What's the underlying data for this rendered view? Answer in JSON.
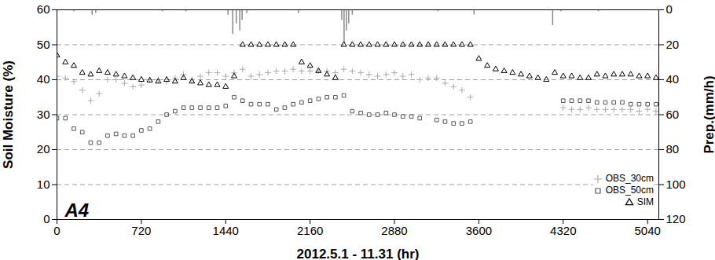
{
  "chart_data": {
    "type": "scatter",
    "title": "A4",
    "x_label": "2012.5.1 - 11.31 (hr)",
    "y_label": "Soil Moisture (%)",
    "y2_label": "Prep.(mm/h)",
    "xlim": [
      0,
      5136
    ],
    "xticks": [
      0,
      720,
      1440,
      2160,
      2880,
      3600,
      4320,
      5040
    ],
    "ylim": [
      0,
      60
    ],
    "yticks": [
      0,
      10,
      20,
      30,
      40,
      50,
      60
    ],
    "y2lim": [
      120,
      0
    ],
    "y2ticks": [
      0,
      20,
      40,
      60,
      80,
      100,
      120
    ],
    "grid": true,
    "legend": "bottom-right",
    "x": [
      0,
      72,
      144,
      216,
      288,
      360,
      432,
      504,
      576,
      648,
      720,
      792,
      864,
      936,
      1008,
      1080,
      1152,
      1224,
      1296,
      1368,
      1440,
      1512,
      1584,
      1656,
      1728,
      1800,
      1872,
      1944,
      2016,
      2088,
      2160,
      2232,
      2304,
      2376,
      2448,
      2520,
      2592,
      2664,
      2736,
      2808,
      2880,
      2952,
      3024,
      3096,
      3168,
      3240,
      3312,
      3384,
      3456,
      3528,
      3600,
      3672,
      3744,
      3816,
      3888,
      3960,
      4032,
      4104,
      4176,
      4248,
      4320,
      4392,
      4464,
      4536,
      4608,
      4680,
      4752,
      4824,
      4896,
      4968,
      5040,
      5112
    ],
    "series": [
      {
        "name": "OBS_30cm",
        "color": "#aaaaaa",
        "marker": "plus",
        "values": [
          41,
          40.5,
          39.5,
          37,
          34,
          36,
          40,
          40,
          39,
          38,
          38.5,
          40,
          40,
          39.5,
          40.5,
          41.5,
          40,
          41,
          42,
          42,
          41,
          42,
          43,
          41,
          41.5,
          42,
          42.5,
          42.5,
          43,
          42.5,
          42.5,
          42.5,
          42.5,
          42,
          43,
          42.5,
          42,
          41.5,
          41,
          41.5,
          42,
          41,
          41.5,
          40,
          40.5,
          40.5,
          39,
          38,
          37,
          35,
          null,
          null,
          null,
          null,
          null,
          null,
          null,
          null,
          null,
          null,
          32,
          31.5,
          31.5,
          32,
          31.5,
          31.5,
          31.5,
          31.5,
          31.5,
          31,
          31.5,
          31
        ]
      },
      {
        "name": "OBS_50cm",
        "color": "#555555",
        "marker": "square",
        "values": [
          29,
          29,
          26,
          25,
          22,
          22,
          24,
          24.5,
          24,
          24,
          25.5,
          26,
          28,
          30,
          31,
          32,
          32,
          32,
          32,
          32,
          32.5,
          35,
          34,
          33,
          33,
          33,
          31.5,
          32,
          33,
          33.5,
          34,
          34.5,
          35,
          35,
          35.5,
          31,
          30.5,
          30,
          30,
          30.5,
          30,
          29.5,
          29.5,
          29,
          null,
          28.5,
          28,
          27.5,
          27.5,
          28,
          null,
          null,
          null,
          null,
          null,
          null,
          null,
          null,
          null,
          null,
          34,
          34,
          34,
          34,
          33.5,
          33.5,
          33.5,
          33.5,
          33,
          33,
          33,
          33
        ]
      },
      {
        "name": "SIM",
        "color": "#000000",
        "marker": "triangle",
        "values": [
          47,
          45,
          44,
          42,
          41.5,
          42.5,
          42,
          41.5,
          41,
          40.5,
          40,
          39.8,
          39.5,
          40,
          39.5,
          40.5,
          39.5,
          39,
          38.5,
          38.5,
          38,
          41,
          50,
          50,
          50,
          50,
          50,
          50,
          50,
          45,
          44,
          42.5,
          41.5,
          40.5,
          50,
          50,
          50,
          50,
          50,
          50,
          50,
          50,
          50,
          50,
          50,
          50,
          50,
          50,
          50,
          50,
          46,
          44,
          43,
          42.5,
          42,
          41.5,
          41,
          40.5,
          40,
          42,
          41,
          41,
          40.5,
          40.5,
          41.5,
          41,
          41.5,
          41.5,
          41.5,
          41,
          41,
          40.5
        ]
      }
    ],
    "precipitation": {
      "type": "bar",
      "axis": "y2",
      "color": "#888888",
      "x": [
        144,
        300,
        330,
        900,
        1100,
        1460,
        1500,
        1530,
        1560,
        1580,
        1620,
        2060,
        2430,
        2450,
        2470,
        2490,
        2520,
        3250,
        3560,
        4230,
        4300,
        4620
      ],
      "values": [
        1,
        3,
        2,
        1,
        1,
        3,
        14,
        8,
        12,
        6,
        2,
        2,
        6,
        19,
        12,
        8,
        3,
        1,
        3,
        9,
        1,
        1
      ]
    }
  }
}
